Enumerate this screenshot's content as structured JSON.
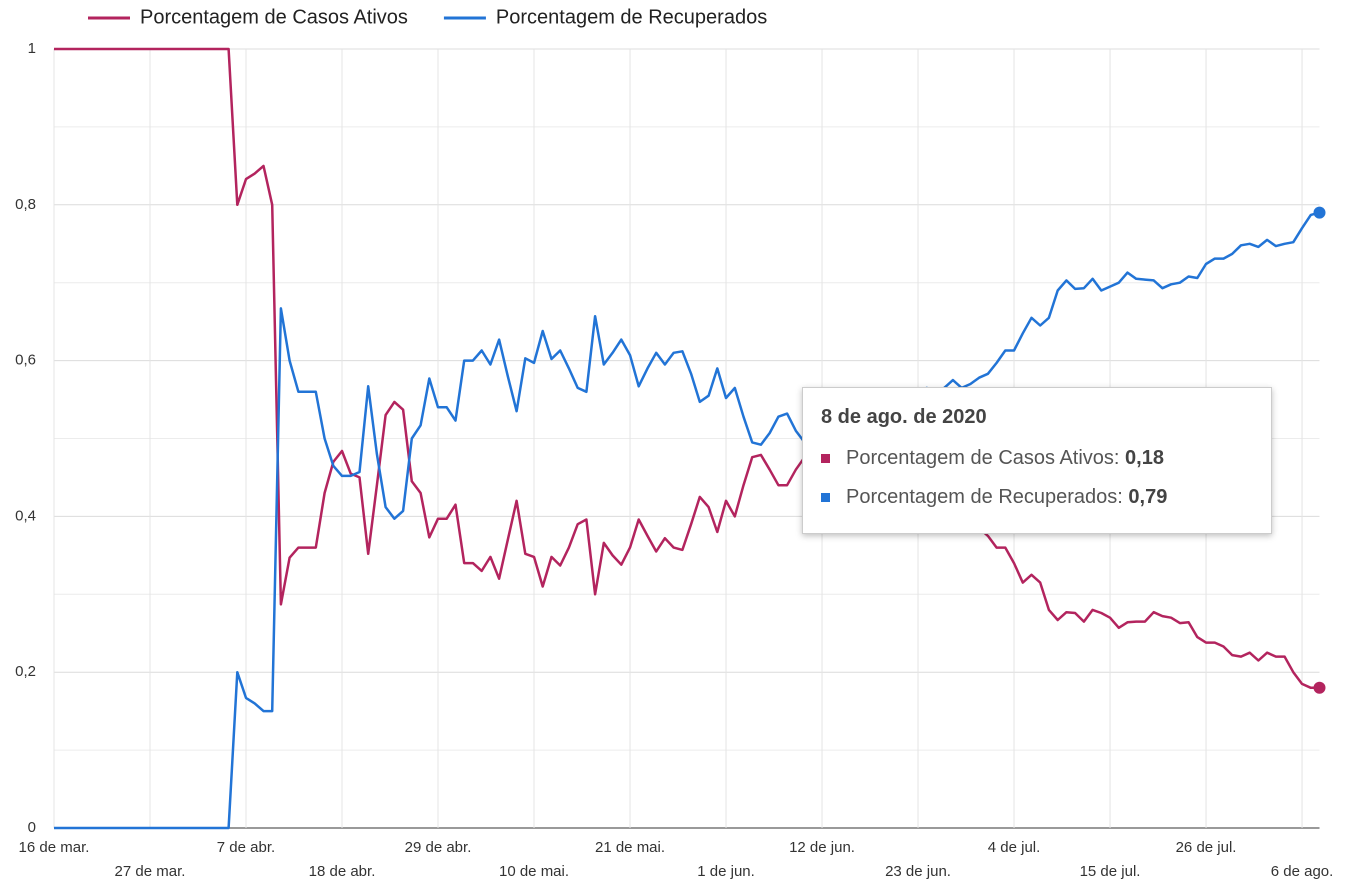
{
  "chart_data": {
    "type": "line",
    "x": [
      "2020-03-16",
      "2020-03-17",
      "2020-03-18",
      "2020-03-19",
      "2020-03-20",
      "2020-03-21",
      "2020-03-22",
      "2020-03-23",
      "2020-03-24",
      "2020-03-25",
      "2020-03-26",
      "2020-03-27",
      "2020-03-28",
      "2020-03-29",
      "2020-03-30",
      "2020-03-31",
      "2020-04-01",
      "2020-04-02",
      "2020-04-03",
      "2020-04-04",
      "2020-04-05",
      "2020-04-06",
      "2020-04-07",
      "2020-04-08",
      "2020-04-09",
      "2020-04-10",
      "2020-04-11",
      "2020-04-12",
      "2020-04-13",
      "2020-04-14",
      "2020-04-15",
      "2020-04-16",
      "2020-04-17",
      "2020-04-18",
      "2020-04-19",
      "2020-04-20",
      "2020-04-21",
      "2020-04-22",
      "2020-04-23",
      "2020-04-24",
      "2020-04-25",
      "2020-04-26",
      "2020-04-27",
      "2020-04-28",
      "2020-04-29",
      "2020-04-30",
      "2020-05-01",
      "2020-05-02",
      "2020-05-03",
      "2020-05-04",
      "2020-05-05",
      "2020-05-06",
      "2020-05-07",
      "2020-05-08",
      "2020-05-09",
      "2020-05-10",
      "2020-05-11",
      "2020-05-12",
      "2020-05-13",
      "2020-05-14",
      "2020-05-15",
      "2020-05-16",
      "2020-05-17",
      "2020-05-18",
      "2020-05-19",
      "2020-05-20",
      "2020-05-21",
      "2020-05-22",
      "2020-05-23",
      "2020-05-24",
      "2020-05-25",
      "2020-05-26",
      "2020-05-27",
      "2020-05-28",
      "2020-05-29",
      "2020-05-30",
      "2020-05-31",
      "2020-06-01",
      "2020-06-02",
      "2020-06-03",
      "2020-06-04",
      "2020-06-05",
      "2020-06-06",
      "2020-06-07",
      "2020-06-08",
      "2020-06-09",
      "2020-06-10",
      "2020-06-11",
      "2020-06-12",
      "2020-06-13",
      "2020-06-14",
      "2020-06-15",
      "2020-06-16",
      "2020-06-17",
      "2020-06-18",
      "2020-06-19",
      "2020-06-20",
      "2020-06-21",
      "2020-06-22",
      "2020-06-23",
      "2020-06-24",
      "2020-06-25",
      "2020-06-26",
      "2020-06-27",
      "2020-06-28",
      "2020-06-29",
      "2020-06-30",
      "2020-07-01",
      "2020-07-02",
      "2020-07-03",
      "2020-07-04",
      "2020-07-05",
      "2020-07-06",
      "2020-07-07",
      "2020-07-08",
      "2020-07-09",
      "2020-07-10",
      "2020-07-11",
      "2020-07-12",
      "2020-07-13",
      "2020-07-14",
      "2020-07-15",
      "2020-07-16",
      "2020-07-17",
      "2020-07-18",
      "2020-07-19",
      "2020-07-20",
      "2020-07-21",
      "2020-07-22",
      "2020-07-23",
      "2020-07-24",
      "2020-07-25",
      "2020-07-26",
      "2020-07-27",
      "2020-07-28",
      "2020-07-29",
      "2020-07-30",
      "2020-07-31",
      "2020-08-01",
      "2020-08-02",
      "2020-08-03",
      "2020-08-04",
      "2020-08-05",
      "2020-08-06",
      "2020-08-07",
      "2020-08-08"
    ],
    "series": [
      {
        "name": "Porcentagem de Casos Ativos",
        "color": "#b3245e",
        "values": [
          1,
          1,
          1,
          1,
          1,
          1,
          1,
          1,
          1,
          1,
          1,
          1,
          1,
          1,
          1,
          1,
          1,
          1,
          1,
          1,
          1,
          0.8,
          0.833,
          0.84,
          0.85,
          0.8,
          0.287,
          0.347,
          0.36,
          0.36,
          0.36,
          0.43,
          0.47,
          0.484,
          0.455,
          0.45,
          0.352,
          0.44,
          0.53,
          0.547,
          0.537,
          0.445,
          0.43,
          0.373,
          0.397,
          0.397,
          0.415,
          0.34,
          0.34,
          0.33,
          0.348,
          0.32,
          0.37,
          0.42,
          0.352,
          0.348,
          0.31,
          0.348,
          0.337,
          0.36,
          0.39,
          0.396,
          0.3,
          0.366,
          0.35,
          0.338,
          0.36,
          0.396,
          0.375,
          0.355,
          0.372,
          0.36,
          0.357,
          0.39,
          0.425,
          0.412,
          0.38,
          0.42,
          0.4,
          0.44,
          0.476,
          0.479,
          0.46,
          0.44,
          0.44,
          0.46,
          0.476,
          0.47,
          0.46,
          0.465,
          0.455,
          0.46,
          0.45,
          0.455,
          0.445,
          0.45,
          0.44,
          0.44,
          0.43,
          0.435,
          0.425,
          0.42,
          0.41,
          0.405,
          0.395,
          0.39,
          0.385,
          0.375,
          0.36,
          0.36,
          0.34,
          0.315,
          0.325,
          0.315,
          0.28,
          0.267,
          0.277,
          0.276,
          0.265,
          0.28,
          0.276,
          0.27,
          0.257,
          0.264,
          0.265,
          0.265,
          0.277,
          0.272,
          0.27,
          0.263,
          0.264,
          0.245,
          0.238,
          0.238,
          0.233,
          0.222,
          0.22,
          0.225,
          0.215,
          0.225,
          0.22,
          0.22,
          0.2,
          0.185,
          0.18,
          0.18
        ]
      },
      {
        "name": "Porcentagem de Recuperados",
        "color": "#2274d6",
        "values": [
          0,
          0,
          0,
          0,
          0,
          0,
          0,
          0,
          0,
          0,
          0,
          0,
          0,
          0,
          0,
          0,
          0,
          0,
          0,
          0,
          0,
          0.2,
          0.167,
          0.16,
          0.15,
          0.15,
          0.667,
          0.6,
          0.56,
          0.56,
          0.56,
          0.5,
          0.465,
          0.452,
          0.452,
          0.457,
          0.567,
          0.48,
          0.412,
          0.397,
          0.407,
          0.5,
          0.517,
          0.577,
          0.54,
          0.54,
          0.523,
          0.6,
          0.6,
          0.613,
          0.595,
          0.627,
          0.58,
          0.535,
          0.603,
          0.597,
          0.638,
          0.602,
          0.613,
          0.59,
          0.565,
          0.56,
          0.657,
          0.595,
          0.61,
          0.627,
          0.607,
          0.567,
          0.59,
          0.61,
          0.595,
          0.61,
          0.612,
          0.583,
          0.547,
          0.555,
          0.59,
          0.552,
          0.565,
          0.528,
          0.495,
          0.492,
          0.507,
          0.528,
          0.532,
          0.51,
          0.495,
          0.5,
          0.51,
          0.51,
          0.52,
          0.52,
          0.53,
          0.535,
          0.54,
          0.545,
          0.55,
          0.555,
          0.56,
          0.56,
          0.565,
          0.56,
          0.565,
          0.575,
          0.565,
          0.57,
          0.578,
          0.583,
          0.597,
          0.613,
          0.613,
          0.635,
          0.655,
          0.645,
          0.655,
          0.69,
          0.703,
          0.692,
          0.693,
          0.705,
          0.69,
          0.695,
          0.7,
          0.713,
          0.705,
          0.704,
          0.703,
          0.693,
          0.698,
          0.7,
          0.708,
          0.706,
          0.724,
          0.731,
          0.731,
          0.737,
          0.748,
          0.75,
          0.746,
          0.755,
          0.747,
          0.75,
          0.752,
          0.77,
          0.787,
          0.79
        ]
      }
    ],
    "xlim": [
      "2020-03-16",
      "2020-08-08"
    ],
    "xticks": [
      {
        "value": "2020-03-16",
        "label": "16 de mar."
      },
      {
        "value": "2020-03-27",
        "label": "27 de mar."
      },
      {
        "value": "2020-04-07",
        "label": "7 de abr."
      },
      {
        "value": "2020-04-18",
        "label": "18 de abr."
      },
      {
        "value": "2020-04-29",
        "label": "29 de abr."
      },
      {
        "value": "2020-05-10",
        "label": "10 de mai."
      },
      {
        "value": "2020-05-21",
        "label": "21 de mai."
      },
      {
        "value": "2020-06-01",
        "label": "1 de jun."
      },
      {
        "value": "2020-06-12",
        "label": "12 de jun."
      },
      {
        "value": "2020-06-23",
        "label": "23 de jun."
      },
      {
        "value": "2020-07-04",
        "label": "4 de jul."
      },
      {
        "value": "2020-07-15",
        "label": "15 de jul."
      },
      {
        "value": "2020-07-26",
        "label": "26 de jul."
      },
      {
        "value": "2020-08-06",
        "label": "6 de ago."
      }
    ],
    "ylim": [
      0,
      1
    ],
    "yticks": [
      0,
      {
        "value": 0.2,
        "label": "0,2"
      },
      {
        "value": 0.4,
        "label": "0,4"
      },
      {
        "value": 0.6,
        "label": "0,6"
      },
      {
        "value": 0.8,
        "label": "0,8"
      },
      1
    ],
    "minor_yticks": [
      0.1,
      0.3,
      0.5,
      0.7,
      0.9
    ],
    "grid": true,
    "legend": "top",
    "tooltip": {
      "title": "8 de ago. de 2020",
      "value_labels": [
        "0,18",
        "0,79"
      ]
    }
  }
}
